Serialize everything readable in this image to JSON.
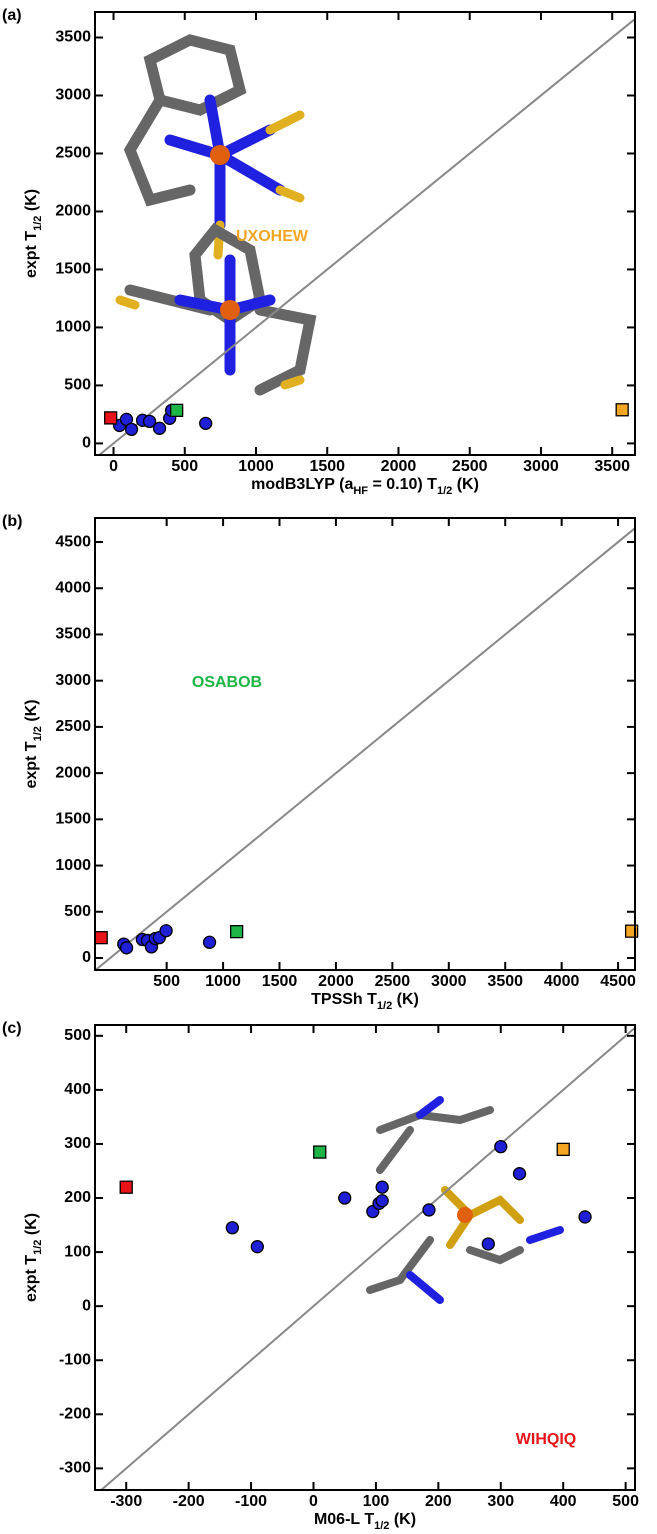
{
  "chart_data": [
    {
      "type": "scatter",
      "panel_label": "(a)",
      "xlabel": [
        "modB3LYP (a",
        "HF",
        " = 0.10) T",
        "1/2",
        " (K)"
      ],
      "ylabel": [
        "expt T",
        "1/2",
        " (K)"
      ],
      "xlim": [
        -130,
        3660
      ],
      "ylim": [
        -100,
        3720
      ],
      "xticks": [
        0,
        500,
        1000,
        1500,
        2000,
        2500,
        3000,
        3500
      ],
      "yticks": [
        0,
        500,
        1000,
        1500,
        2000,
        2500,
        3000,
        3500
      ],
      "diagonal": true,
      "annotation": {
        "text": "UXOHEW",
        "color": "#f5a623"
      },
      "series": [
        {
          "color": "#1f1fd6",
          "marker": "circle",
          "x": [
            42,
            91,
            126,
            204,
            253,
            323,
            394,
            408,
            647
          ],
          "values": [
            155,
            207,
            121,
            199,
            190,
            130,
            216,
            285,
            173
          ]
        },
        {
          "color": "#e8141a",
          "marker": "square",
          "x": [
            -20
          ],
          "values": [
            220
          ]
        },
        {
          "color": "#1db546",
          "marker": "square",
          "x": [
            443
          ],
          "values": [
            285
          ]
        },
        {
          "color": "#f5a623",
          "marker": "square",
          "x": [
            3570
          ],
          "values": [
            290
          ]
        }
      ]
    },
    {
      "type": "scatter",
      "panel_label": "(b)",
      "xlabel": [
        "TPSSh T",
        "1/2",
        " (K)"
      ],
      "ylabel": [
        "expt T",
        "1/2",
        " (K)"
      ],
      "xlim": [
        -135,
        4650
      ],
      "ylim": [
        -130,
        4760
      ],
      "xticks": [
        500,
        1000,
        1500,
        2000,
        2500,
        3000,
        3500,
        4000,
        4500
      ],
      "yticks": [
        0,
        500,
        1000,
        1500,
        2000,
        2500,
        3000,
        3500,
        4000,
        4500
      ],
      "diagonal": true,
      "annotation": {
        "text": "OSABOB",
        "color": "#1db546"
      },
      "series": [
        {
          "color": "#1f1fd6",
          "marker": "circle",
          "x": [
            120,
            145,
            285,
            330,
            365,
            400,
            435,
            495,
            880
          ],
          "values": [
            150,
            110,
            200,
            190,
            120,
            210,
            220,
            295,
            170
          ]
        },
        {
          "color": "#e8141a",
          "marker": "square",
          "x": [
            -80
          ],
          "values": [
            220
          ]
        },
        {
          "color": "#1db546",
          "marker": "square",
          "x": [
            1120
          ],
          "values": [
            285
          ]
        },
        {
          "color": "#f5a623",
          "marker": "square",
          "x": [
            4620
          ],
          "values": [
            290
          ]
        }
      ]
    },
    {
      "type": "scatter",
      "panel_label": "(c)",
      "xlabel": [
        "M06-L T",
        "1/2",
        " (K)"
      ],
      "ylabel": [
        "expt T",
        "1/2",
        " (K)"
      ],
      "xlim": [
        -350,
        515
      ],
      "ylim": [
        -340,
        520
      ],
      "xticks": [
        -300,
        -200,
        -100,
        0,
        100,
        200,
        300,
        400,
        500
      ],
      "yticks": [
        -300,
        -200,
        -100,
        0,
        100,
        200,
        300,
        400,
        500
      ],
      "diagonal": true,
      "annotation": {
        "text": "WIHQIQ",
        "color": "#e8141a"
      },
      "series": [
        {
          "color": "#1f1fd6",
          "marker": "circle",
          "x": [
            -130,
            -90,
            50,
            95,
            105,
            110,
            110,
            185,
            280,
            300,
            330,
            435
          ],
          "values": [
            145,
            110,
            200,
            175,
            190,
            220,
            195,
            178,
            115,
            295,
            245,
            165
          ]
        },
        {
          "color": "#e8141a",
          "marker": "square",
          "x": [
            -300
          ],
          "values": [
            220
          ]
        },
        {
          "color": "#1db546",
          "marker": "square",
          "x": [
            10
          ],
          "values": [
            285
          ]
        },
        {
          "color": "#f5a623",
          "marker": "square",
          "x": [
            400
          ],
          "values": [
            290
          ]
        }
      ]
    }
  ]
}
